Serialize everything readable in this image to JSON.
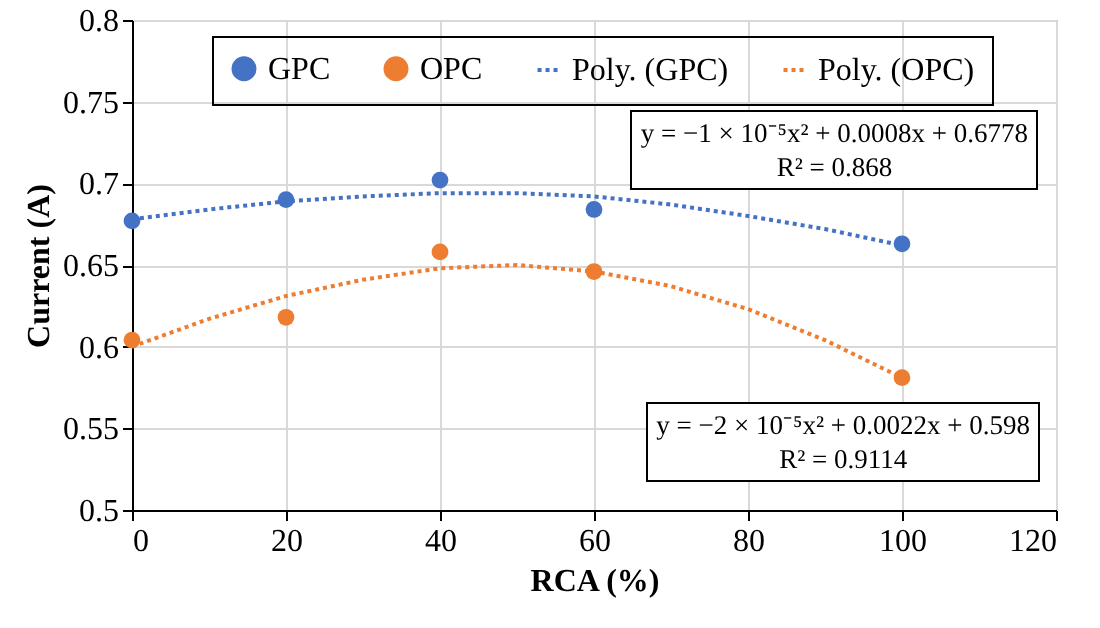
{
  "chart_data": {
    "type": "scatter",
    "xlabel": "RCA (%)",
    "ylabel": "Current (A)",
    "xlim": [
      0,
      120
    ],
    "xticks": [
      0,
      20,
      40,
      60,
      80,
      100,
      120
    ],
    "ylim": [
      0.5,
      0.8
    ],
    "yticks": [
      0.5,
      0.55,
      0.6,
      0.65,
      0.7,
      0.75,
      0.8
    ],
    "grid": true,
    "legend": "top",
    "series": [
      {
        "name": "GPC",
        "marker": "circle",
        "color": "#4472c4",
        "x": [
          0,
          20,
          40,
          60,
          100
        ],
        "values": [
          0.677,
          0.69,
          0.702,
          0.684,
          0.663
        ]
      },
      {
        "name": "OPC",
        "marker": "circle",
        "color": "#ed7d31",
        "x": [
          0,
          20,
          40,
          60,
          100
        ],
        "values": [
          0.604,
          0.618,
          0.658,
          0.646,
          0.581
        ]
      },
      {
        "name": "Poly. (GPC)",
        "type": "line",
        "line_style": "dotted",
        "color": "#4472c4",
        "x": [
          0,
          10,
          20,
          30,
          40,
          50,
          60,
          70,
          80,
          90,
          100
        ],
        "values": [
          0.678,
          0.684,
          0.689,
          0.692,
          0.694,
          0.694,
          0.692,
          0.687,
          0.68,
          0.672,
          0.662
        ]
      },
      {
        "name": "Poly. (OPC)",
        "type": "line",
        "line_style": "dotted",
        "color": "#ed7d31",
        "x": [
          0,
          10,
          20,
          30,
          40,
          50,
          60,
          70,
          80,
          90,
          100
        ],
        "values": [
          0.6,
          0.617,
          0.631,
          0.641,
          0.648,
          0.65,
          0.646,
          0.637,
          0.623,
          0.604,
          0.581
        ]
      }
    ],
    "annotations": [
      "y = −1 × 10⁻⁵x² + 0.0008x + 0.6778",
      "R² = 0.868",
      "y = −2 × 10⁻⁵x² + 0.0022x + 0.598",
      "R² = 0.9114"
    ]
  }
}
